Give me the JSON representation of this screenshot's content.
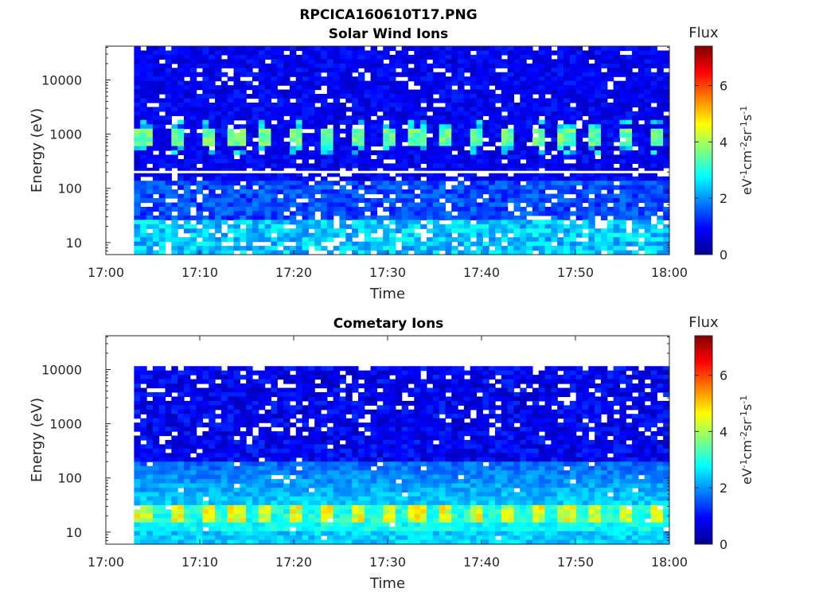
{
  "figure": {
    "title": "RPCICA160610T17.PNG"
  },
  "chart_data": [
    {
      "type": "heatmap",
      "title": "Solar Wind Ions",
      "xlabel": "Time",
      "ylabel": "Energy (eV)",
      "x_ticks": [
        "17:00",
        "17:10",
        "17:20",
        "17:30",
        "17:40",
        "17:50",
        "18:00"
      ],
      "x_range_minutes": [
        0,
        60
      ],
      "y_scale": "log",
      "y_ticks": [
        "10",
        "100",
        "1000",
        "10000"
      ],
      "y_range": [
        6,
        42000
      ],
      "data_start_minute": 3,
      "colorbar": {
        "label": "Flux",
        "units_base": "eV",
        "units_parts": [
          "-1",
          "cm",
          "-2",
          "sr",
          "-1",
          "s",
          "-1"
        ],
        "ticks": [
          "0",
          "2",
          "4",
          "6"
        ],
        "range": [
          0,
          7.4
        ],
        "colormap": "jet"
      },
      "features": [
        {
          "description_energy_eV": 900,
          "peak_flux": 3.8,
          "period_minutes": 3.2
        },
        {
          "gap_energy_eV": 200
        }
      ]
    },
    {
      "type": "heatmap",
      "title": "Cometary Ions",
      "xlabel": "Time",
      "ylabel": "Energy (eV)",
      "x_ticks": [
        "17:00",
        "17:10",
        "17:20",
        "17:30",
        "17:40",
        "17:50",
        "18:00"
      ],
      "x_range_minutes": [
        0,
        60
      ],
      "y_scale": "log",
      "y_ticks": [
        "10",
        "100",
        "1000",
        "10000"
      ],
      "y_range": [
        6,
        42000
      ],
      "data_start_minute": 3,
      "data_top_eV": 11000,
      "colorbar": {
        "label": "Flux",
        "units_base": "eV",
        "units_parts": [
          "-1",
          "cm",
          "-2",
          "sr",
          "-1",
          "s",
          "-1"
        ],
        "ticks": [
          "0",
          "2",
          "4",
          "6"
        ],
        "range": [
          0,
          7.4
        ],
        "colormap": "jet"
      },
      "features": [
        {
          "band_energy_eV": 22,
          "peak_flux": 5.0,
          "period_minutes": 3.2
        }
      ]
    }
  ]
}
